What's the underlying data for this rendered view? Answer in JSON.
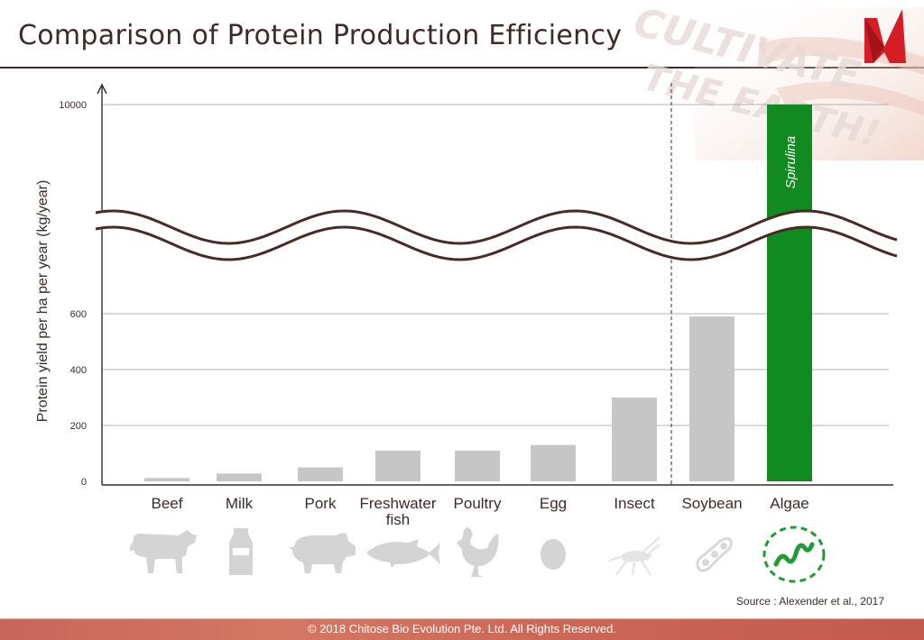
{
  "page": {
    "title": "Comparison of Protein Production Efficiency",
    "source": "Source : Alexender et al., 2017",
    "footer": "© 2018 Chitose Bio Evolution Pte. Ltd. All Rights Reserved.",
    "watermark_line1": "CULTIVATE",
    "watermark_line2": "THE EARTH!"
  },
  "colors": {
    "title": "#3d2b27",
    "bar_gray": "#c6c6c6",
    "bar_highlight": "#128a22",
    "footer": "#c8655b",
    "icon_gray": "#d4d4d4",
    "icon_green": "#1f9c34",
    "logo_red": "#d41d24"
  },
  "icons": [
    "cow-icon",
    "milk-carton-icon",
    "pig-icon",
    "fish-icon",
    "rooster-icon",
    "egg-icon",
    "cricket-icon",
    "soybean-icon",
    "spirulina-icon"
  ],
  "chart_data": {
    "type": "bar",
    "categories": [
      "Beef",
      "Milk",
      "Pork",
      "Freshwater fish",
      "Poultry",
      "Egg",
      "Insect",
      "Soybean",
      "Algae"
    ],
    "category_lines": [
      [
        "Beef"
      ],
      [
        "Milk"
      ],
      [
        "Pork"
      ],
      [
        "Freshwater",
        "fish"
      ],
      [
        "Poultry"
      ],
      [
        "Egg"
      ],
      [
        "Insect"
      ],
      [
        "Soybean"
      ],
      [
        "Algae"
      ]
    ],
    "values": [
      12,
      28,
      50,
      110,
      110,
      130,
      300,
      590,
      10000
    ],
    "highlight_index": 8,
    "highlight_label": "Spirulina",
    "ylabel": "Protein yield per ha per year (kg/year)",
    "yticks": [
      0,
      200,
      400,
      600,
      10000
    ],
    "yaxis_break": {
      "from": 600,
      "to": 10000
    },
    "ylim_lower": [
      0,
      650
    ],
    "divider_between": [
      "Insect",
      "Soybean"
    ],
    "grid": true
  }
}
